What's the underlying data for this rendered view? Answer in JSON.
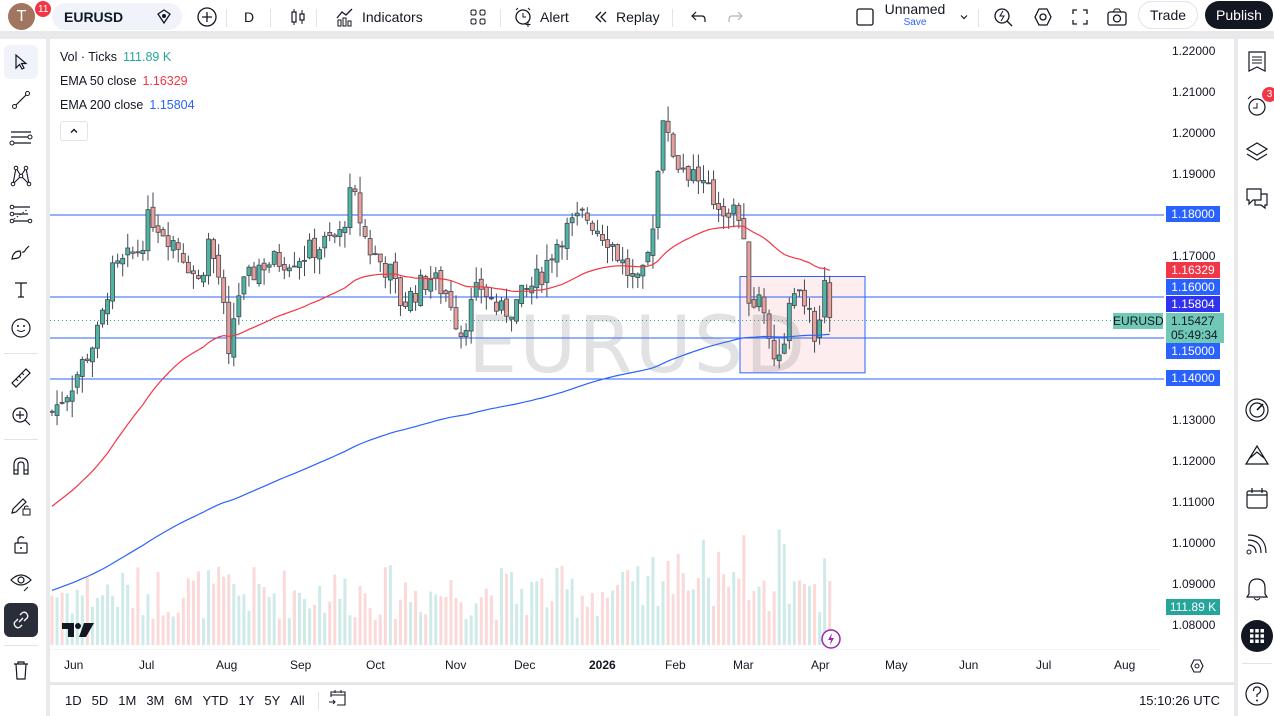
{
  "topbar": {
    "avatar_letter": "T",
    "avatar_badge": "11",
    "symbol": "EURUSD",
    "interval": "D",
    "indicators_label": "Indicators",
    "alert_label": "Alert",
    "replay_label": "Replay",
    "layout_name": "Unnamed",
    "layout_save": "Save",
    "trade_label": "Trade",
    "publish_label": "Publish"
  },
  "legend": {
    "vol_label": "Vol · Ticks",
    "vol_value": "111.89 K",
    "ema50_label": "EMA 50 close",
    "ema50_value": "1.16329",
    "ema200_label": "EMA 200 close",
    "ema200_value": "1.15804"
  },
  "watermark": "EURUSD",
  "price_axis": {
    "labels": [
      "1.22000",
      "1.21000",
      "1.20000",
      "1.19000",
      "1.17000",
      "1.13000",
      "1.12000",
      "1.11000",
      "1.10000",
      "1.09000",
      "1.08000"
    ],
    "tags": {
      "level_118": "1.18000",
      "ema50": "1.16329",
      "level_116": "1.16000",
      "ema200": "1.15804",
      "current_price": "1.15427",
      "countdown": "05:49:34",
      "level_115": "1.15000",
      "level_114": "1.14000",
      "volume": "111.89 K"
    },
    "symbol_tag": "EURUSD"
  },
  "time_axis": {
    "labels": [
      "Jun",
      "Jul",
      "Aug",
      "Sep",
      "Oct",
      "Nov",
      "Dec",
      "2026",
      "Feb",
      "Mar",
      "Apr",
      "May",
      "Jun",
      "Jul",
      "Aug"
    ]
  },
  "bottom": {
    "ranges": [
      "1D",
      "5D",
      "1M",
      "3M",
      "6M",
      "YTD",
      "1Y",
      "5Y",
      "All"
    ],
    "clock": "15:10:26 UTC"
  },
  "right_sidebar": {
    "alerts_badge": "3"
  },
  "colors": {
    "up": "#26a69a",
    "down": "#ef5350",
    "ema50": "#f23645",
    "ema200": "#2962ff",
    "level_line": "#2962ff",
    "current_price": "#70c9b6"
  },
  "chart_data": {
    "type": "candlestick",
    "symbol": "EURUSD",
    "interval": "D",
    "horizontal_levels": [
      1.18,
      1.16,
      1.15,
      1.14
    ],
    "rectangle": {
      "from": "Mar",
      "to": "Apr",
      "top": 1.165,
      "bottom": 1.1415
    },
    "ema50_last": 1.16329,
    "ema200_last": 1.15804,
    "last_price": 1.15427,
    "last_volume": "111.89 K",
    "ylim": [
      1.075,
      1.225
    ]
  }
}
